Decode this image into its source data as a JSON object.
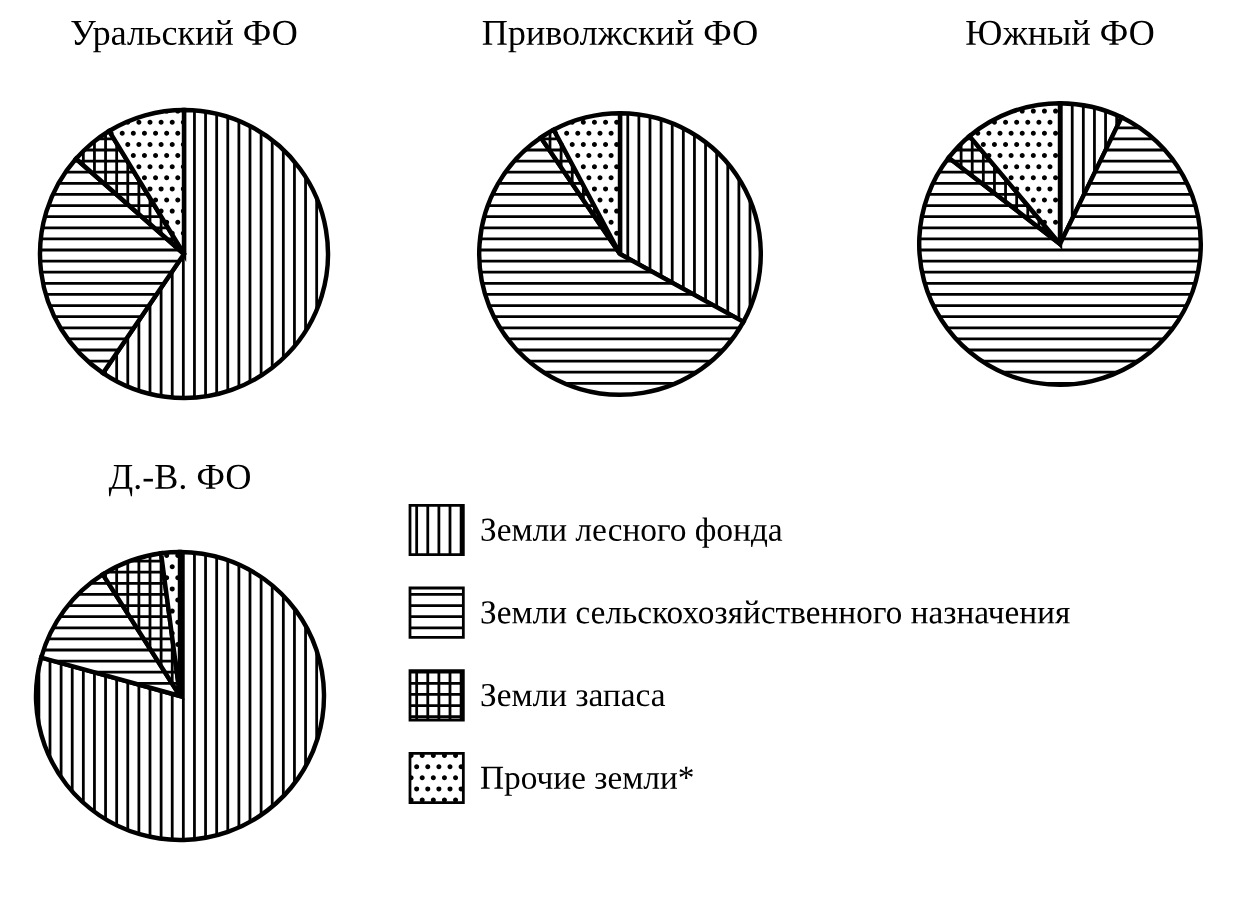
{
  "chart_data": [
    {
      "type": "pie",
      "title": "Уральский ФО",
      "categories": [
        "Земли лесного фонда",
        "Земли сельскохозяйственного назначения",
        "Земли запаса",
        "Прочие земли*"
      ],
      "values": [
        59.5,
        27,
        4.8,
        8.7
      ],
      "legend": "bottom right"
    },
    {
      "type": "pie",
      "title": "Приволжский ФО",
      "values": [
        33,
        57.5,
        1.7,
        7.8
      ]
    },
    {
      "type": "pie",
      "title": "Южный ФО",
      "values": [
        7.2,
        78.3,
        3.4,
        11.1
      ]
    },
    {
      "type": "pie",
      "title": "Д.-В. ФО",
      "values": [
        79.3,
        11.7,
        6.9,
        2.1
      ]
    }
  ]
}
